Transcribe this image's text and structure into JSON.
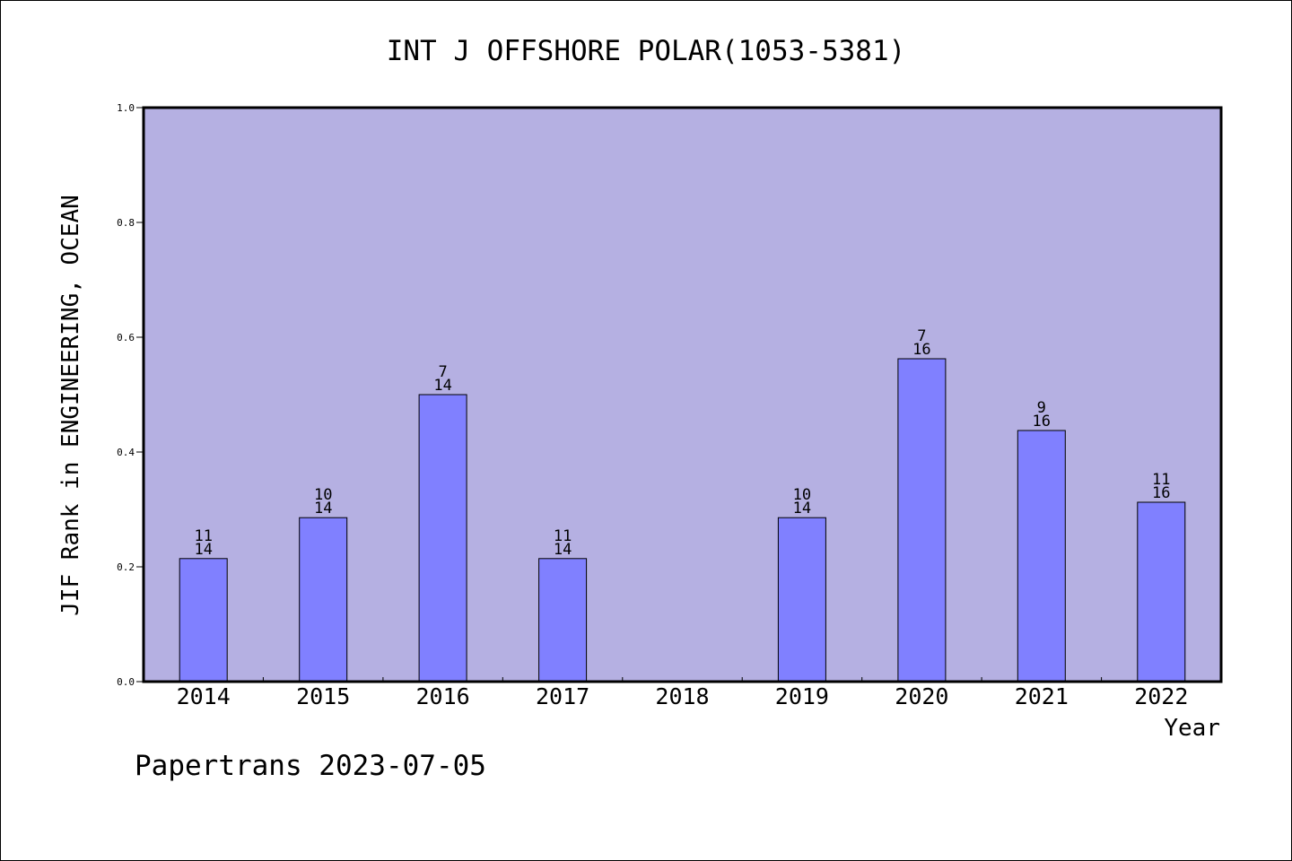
{
  "chart_data": {
    "type": "bar",
    "title": "INT J OFFSHORE POLAR(1053-5381)",
    "xlabel": "Year",
    "ylabel": "JIF Rank in ENGINEERING, OCEAN",
    "ylim": [
      0,
      1.0
    ],
    "yticks": [
      "0.0",
      "0.2",
      "0.4",
      "0.6",
      "0.8",
      "1.0"
    ],
    "grid": false,
    "legend": "none",
    "categories": [
      "2014",
      "2015",
      "2016",
      "2017",
      "2018",
      "2019",
      "2020",
      "2021",
      "2022"
    ],
    "values": [
      0.2143,
      0.2857,
      0.5,
      0.2143,
      null,
      0.2857,
      0.5625,
      0.4375,
      0.3125
    ],
    "rank": [
      "11",
      "10",
      "7",
      "11",
      null,
      "10",
      "7",
      "9",
      "11"
    ],
    "total": [
      "14",
      "14",
      "14",
      "14",
      null,
      "14",
      "16",
      "16",
      "16"
    ],
    "colors": {
      "plot_background": "#b5b0e2",
      "bar_fill": "#8080ff",
      "bar_stroke": "#000000"
    }
  },
  "footer": {
    "text": "Papertrans 2023-07-05"
  }
}
